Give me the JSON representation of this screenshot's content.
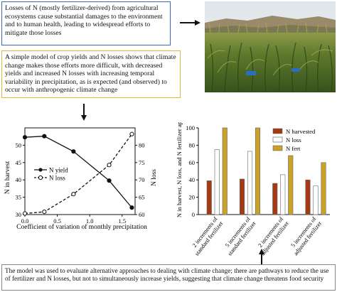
{
  "boxes": {
    "top": "Losses of N (mostly fertilizer-derived) from agricultural ecosystems cause substantial damages to the environment and to human health, leading to widespread efforts to mitigate those losses",
    "middle": "A simple model of crop yields and N losses shows that climate change makes those efforts more difficult, with decreased yields and increased N losses with increasing temporal variability in precipitation, as is expected (and observed) to occur with anthropogenic climate change",
    "bottom": "The model was used to evaluate alternative approaches to dealing with climate change; there are pathways to reduce the use of fertilizer and N losses, but not to simultaneously increase yields, suggesting that climate change threatens food security"
  },
  "colors": {
    "box_top_border": "#3a66c4",
    "box_middle_border": "#e2b83a",
    "n_harvested": "#a53a12",
    "n_loss": "#ffffff",
    "n_fert": "#c9a227"
  },
  "chart_data": [
    {
      "type": "line",
      "xlabel": "Coefficient of variation of monthly precipitation",
      "ylabel_left": "N in harvest",
      "ylabel_right": "N loss",
      "xlim": [
        0,
        1.7
      ],
      "ylim_left": [
        30,
        55
      ],
      "ylim_right": [
        60,
        85
      ],
      "x_ticks": [
        "0.0",
        "0.5",
        "1.0",
        "1.5"
      ],
      "y_ticks_left": [
        "30",
        "35",
        "40",
        "45",
        "50"
      ],
      "y_ticks_right": [
        "60",
        "65",
        "70",
        "75",
        "80"
      ],
      "legend_position": "center-left",
      "series": [
        {
          "name": "N yield",
          "axis": "left",
          "style": "solid-filled",
          "x": [
            0.0,
            0.3,
            0.75,
            1.3,
            1.65
          ],
          "y": [
            52.3,
            52.6,
            48.2,
            39.8,
            32.0
          ]
        },
        {
          "name": "N loss",
          "axis": "right",
          "style": "dashed-open",
          "x": [
            0.0,
            0.3,
            0.75,
            1.3,
            1.65
          ],
          "y": [
            60.3,
            60.8,
            65.9,
            74.3,
            83.2
          ]
        }
      ]
    },
    {
      "type": "bar",
      "ylabel": "N in harvest, N loss, and N fertilizer applied",
      "ylim": [
        0,
        100
      ],
      "y_ticks": [
        "0",
        "20",
        "40",
        "60",
        "80",
        "100"
      ],
      "legend_position": "top-right",
      "categories": [
        "2 increments of standard fertilizer",
        "5 increments of standard fertilizer",
        "2 increments of adjusted fertilizer",
        "5 increments of adjusted fertilizer"
      ],
      "series": [
        {
          "name": "N harvested",
          "values": [
            39,
            41,
            36,
            40
          ]
        },
        {
          "name": "N loss",
          "values": [
            75,
            73,
            46,
            33
          ]
        },
        {
          "name": "N fert",
          "values": [
            100,
            100,
            68,
            60
          ]
        }
      ]
    }
  ]
}
